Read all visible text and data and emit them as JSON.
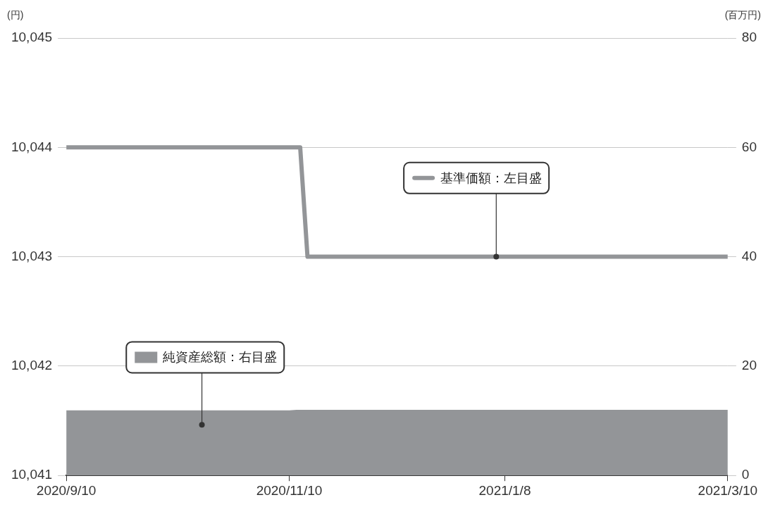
{
  "chart_data": {
    "type": "line",
    "ylabel": "(円)",
    "y2label": "(百万円)",
    "xlim": [
      "2020-09-10",
      "2021-03-10"
    ],
    "xticks": [
      {
        "value": "2020-09-10",
        "label": "2020/9/10"
      },
      {
        "value": "2020-11-10",
        "label": "2020/11/10"
      },
      {
        "value": "2021-01-08",
        "label": "2021/1/8"
      },
      {
        "value": "2021-03-10",
        "label": "2021/3/10"
      }
    ],
    "ylim": [
      10041,
      10045
    ],
    "yticks": [
      {
        "value": 10041,
        "label": "10,041"
      },
      {
        "value": 10042,
        "label": "10,042"
      },
      {
        "value": 10043,
        "label": "10,043"
      },
      {
        "value": 10044,
        "label": "10,044"
      },
      {
        "value": 10045,
        "label": "10,045"
      }
    ],
    "y2lim": [
      0,
      80
    ],
    "y2ticks": [
      0,
      20,
      40,
      60,
      80
    ],
    "grid": "y",
    "legend": "center",
    "series": [
      {
        "name": "基準価額：左目盛",
        "type": "line",
        "color": "#939598",
        "x": [
          "2020-09-10",
          "2020-11-13",
          "2020-11-15",
          "2021-03-10"
        ],
        "values": [
          10044,
          10044,
          10043,
          10043
        ]
      },
      {
        "name": "純資産総額：右目盛",
        "type": "area",
        "axis": "y2",
        "color": "#939598",
        "x": [
          "2020-09-10",
          "2020-11-10",
          "2020-11-12",
          "2021-03-10"
        ],
        "values": [
          11.9,
          11.9,
          12.0,
          12.0
        ]
      }
    ]
  }
}
